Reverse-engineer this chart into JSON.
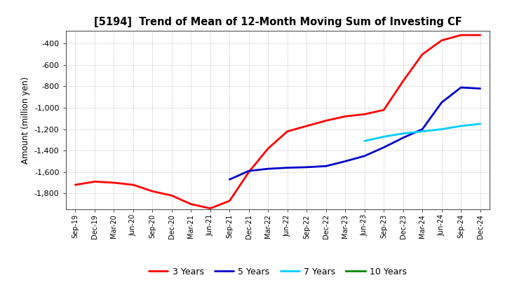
{
  "title": "[5194]  Trend of Mean of 12-Month Moving Sum of Investing CF",
  "ylabel": "Amount (million yen)",
  "ylim": [
    -1950,
    -280
  ],
  "yticks": [
    -1800,
    -1600,
    -1400,
    -1200,
    -1000,
    -800,
    -600,
    -400
  ],
  "background_color": "#ffffff",
  "plot_bg_color": "#ffffff",
  "grid_color": "#999999",
  "legend_entries": [
    "3 Years",
    "5 Years",
    "7 Years",
    "10 Years"
  ],
  "legend_colors": [
    "#ff0000",
    "#0000cc",
    "#00ccff",
    "#008800"
  ],
  "x_labels": [
    "Sep-19",
    "Dec-19",
    "Mar-20",
    "Jun-20",
    "Sep-20",
    "Dec-20",
    "Mar-21",
    "Jun-21",
    "Sep-21",
    "Dec-21",
    "Mar-22",
    "Jun-22",
    "Sep-22",
    "Dec-22",
    "Mar-23",
    "Jun-23",
    "Sep-23",
    "Dec-23",
    "Mar-24",
    "Jun-24",
    "Sep-24",
    "Dec-24"
  ],
  "series_3y": {
    "x_indices": [
      0,
      1,
      2,
      3,
      4,
      5,
      6,
      7,
      8,
      9,
      10,
      11,
      12,
      13,
      14,
      15,
      16,
      17,
      18,
      19,
      20,
      21
    ],
    "y": [
      -1720,
      -1690,
      -1700,
      -1720,
      -1780,
      -1820,
      -1900,
      -1940,
      -1870,
      -1600,
      -1380,
      -1220,
      -1170,
      -1120,
      -1080,
      -1060,
      -1020,
      -750,
      -500,
      -370,
      -320,
      -320
    ]
  },
  "series_5y": {
    "x_indices": [
      8,
      9,
      10,
      11,
      12,
      13,
      14,
      15,
      16,
      17,
      18,
      19,
      20,
      21
    ],
    "y": [
      -1670,
      -1590,
      -1570,
      -1560,
      -1555,
      -1545,
      -1500,
      -1450,
      -1370,
      -1280,
      -1200,
      -950,
      -810,
      -820
    ]
  },
  "series_7y": {
    "x_indices": [
      15,
      16,
      17,
      18,
      19,
      20,
      21
    ],
    "y": [
      -1310,
      -1270,
      -1240,
      -1220,
      -1200,
      -1170,
      -1150
    ]
  },
  "series_10y": {
    "x_indices": [],
    "y": []
  },
  "line_width": 2.0
}
